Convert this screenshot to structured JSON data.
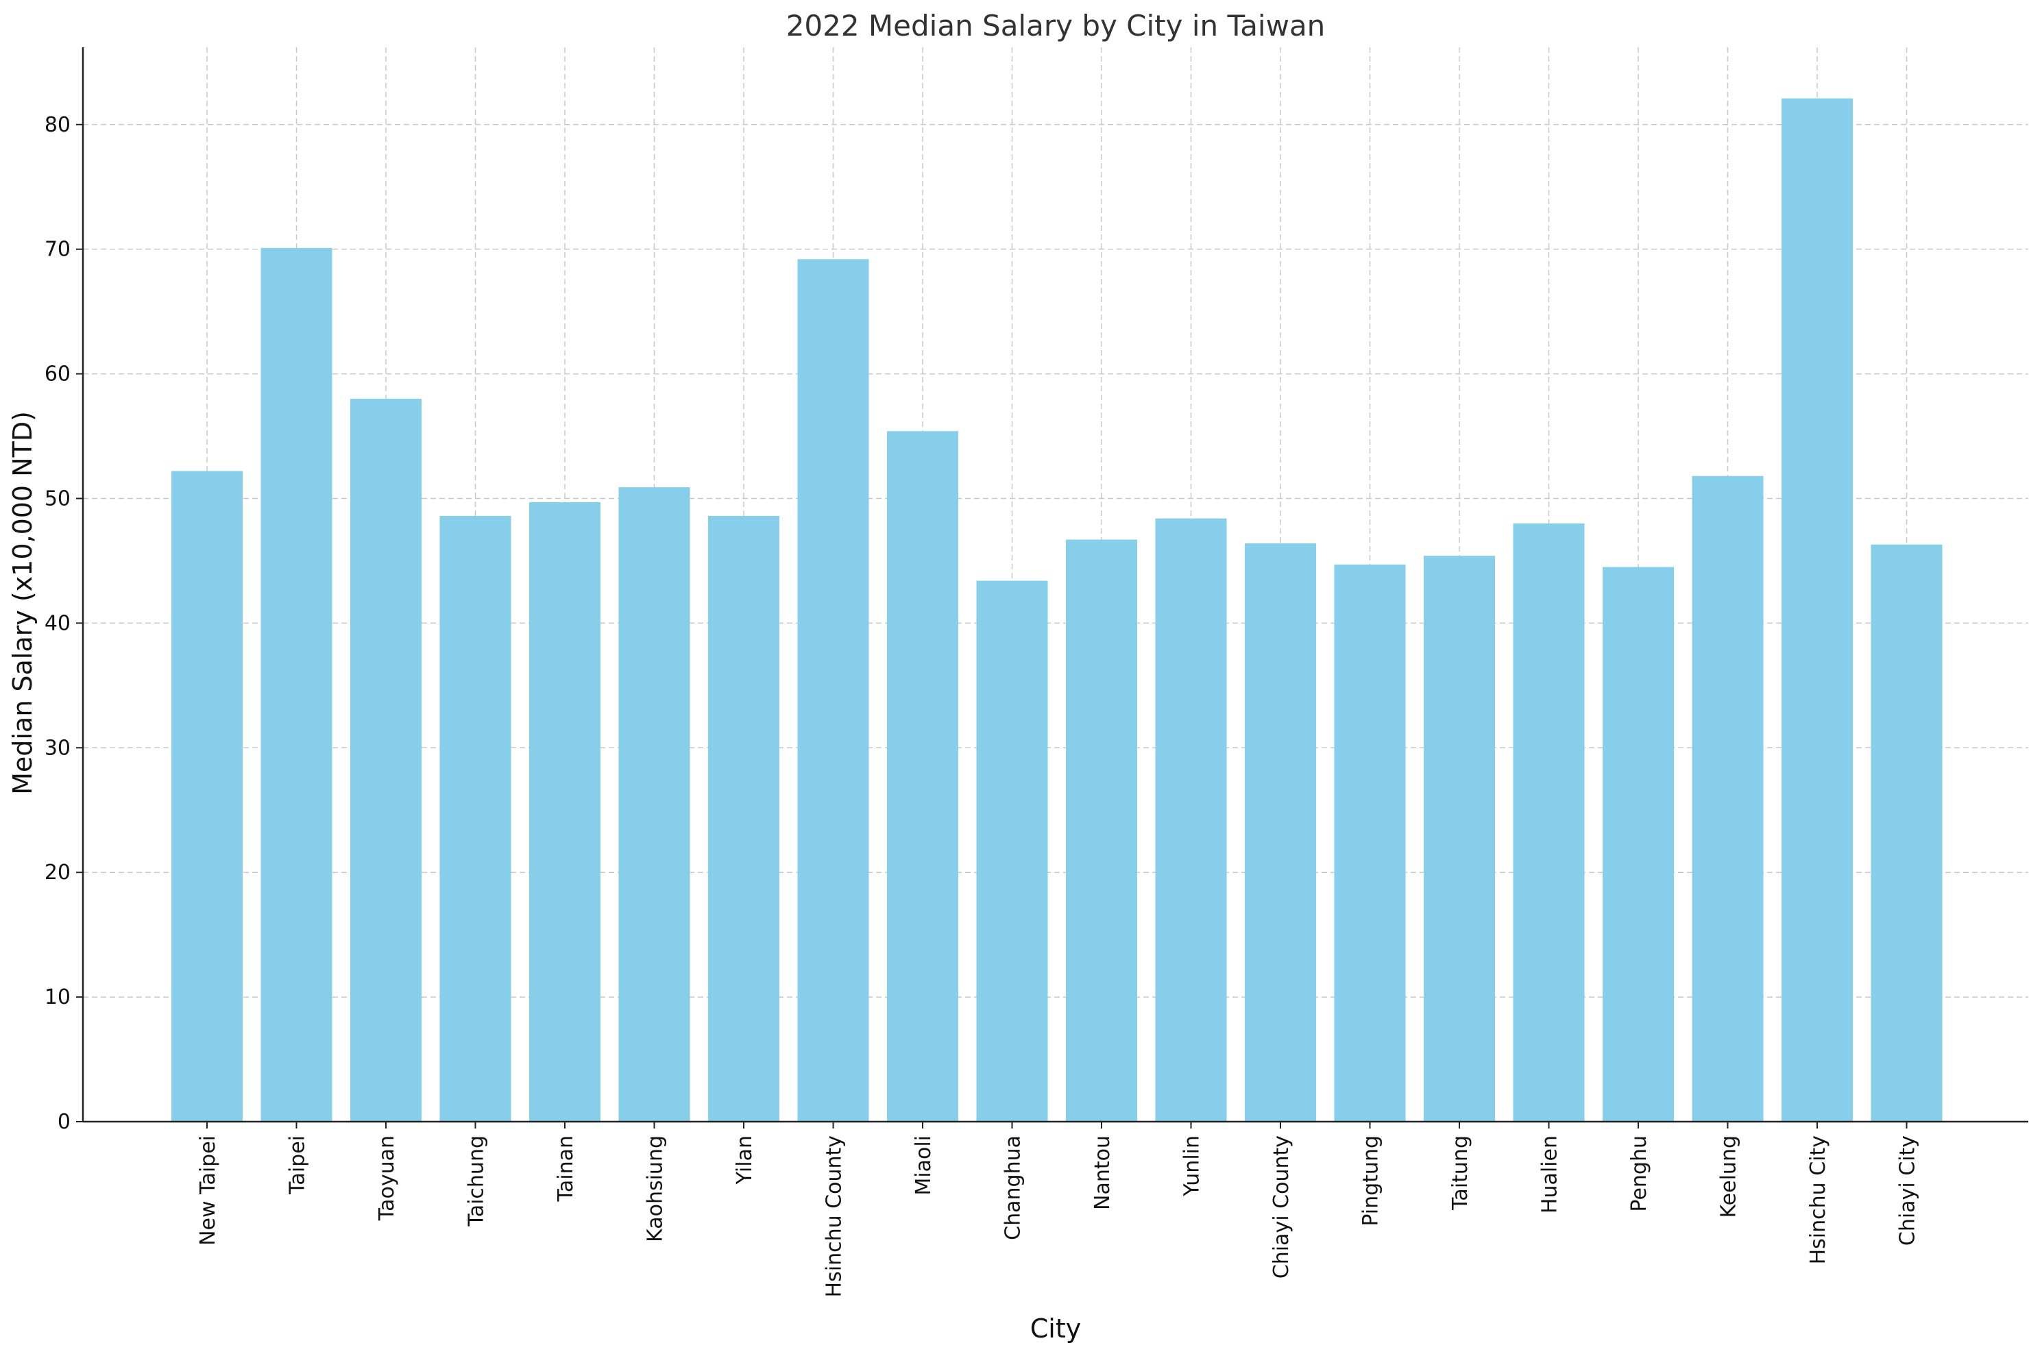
{
  "chart_data": {
    "type": "bar",
    "title": "2022 Median Salary by City in Taiwan",
    "xlabel": "City",
    "ylabel": "Median Salary (x10,000 NTD)",
    "categories": [
      "New Taipei",
      "Taipei",
      "Taoyuan",
      "Taichung",
      "Tainan",
      "Kaohsiung",
      "Yilan",
      "Hsinchu County",
      "Miaoli",
      "Changhua",
      "Nantou",
      "Yunlin",
      "Chiayi County",
      "Pingtung",
      "Taitung",
      "Hualien",
      "Penghu",
      "Keelung",
      "Hsinchu City",
      "Chiayi City"
    ],
    "values": [
      52.2,
      70.1,
      58.0,
      48.6,
      49.7,
      50.9,
      48.6,
      69.2,
      55.4,
      43.4,
      46.7,
      48.4,
      46.4,
      44.7,
      45.4,
      48.0,
      44.5,
      51.8,
      82.1,
      46.3
    ],
    "ylim": [
      0,
      86.2
    ],
    "yticks": [
      "0",
      "10",
      "20",
      "30",
      "40",
      "50",
      "60",
      "70",
      "80"
    ],
    "grid": true,
    "bar_color": "#87CEEB"
  }
}
